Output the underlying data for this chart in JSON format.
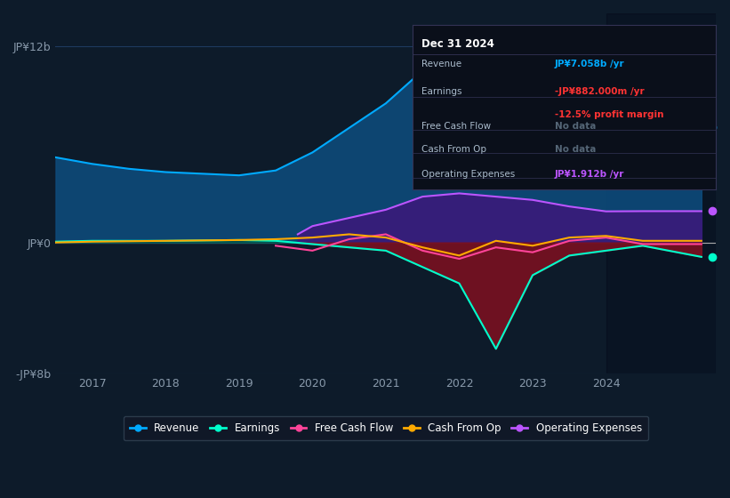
{
  "bg_color": "#0d1b2a",
  "plot_bg_color": "#0d1b2a",
  "ylim": [
    -8000000000,
    14000000000
  ],
  "xlim": [
    2016.5,
    2025.5
  ],
  "yticks": [
    -8000000000,
    0,
    12000000000
  ],
  "ytick_labels": [
    "-JP¥8b",
    "JP¥0",
    "JP¥12b"
  ],
  "xticks": [
    2017,
    2018,
    2019,
    2020,
    2021,
    2022,
    2023,
    2024
  ],
  "grid_color": "#1e3a5f",
  "zero_line_color": "#aaaaaa",
  "revenue_color": "#00aaff",
  "revenue_fill": "#0d4a7a",
  "earnings_color": "#00ffcc",
  "earnings_fill_neg": "#7a1020",
  "earnings_fill_pos": "#005544",
  "fcf_color": "#ff4499",
  "cfo_color": "#ffaa00",
  "opex_color": "#bb55ff",
  "opex_fill": "#3a1a7a",
  "info_box_bg": "#0a0f1a",
  "info_box_border": "#333355",
  "info_title": "Dec 31 2024",
  "legend_entries": [
    "Revenue",
    "Earnings",
    "Free Cash Flow",
    "Cash From Op",
    "Operating Expenses"
  ],
  "revenue_x": [
    2016.5,
    2017,
    2017.5,
    2018,
    2018.5,
    2019,
    2019.5,
    2020,
    2020.5,
    2021,
    2021.5,
    2022,
    2022.25,
    2022.5,
    2023,
    2023.5,
    2024,
    2024.5,
    2025.3
  ],
  "revenue_y": [
    5200000000,
    4800000000,
    4500000000,
    4300000000,
    4200000000,
    4100000000,
    4400000000,
    5500000000,
    7000000000,
    8500000000,
    10500000000,
    11800000000,
    12000000000,
    11500000000,
    10000000000,
    8800000000,
    7500000000,
    7200000000,
    7058000000
  ],
  "earnings_x": [
    2016.5,
    2017,
    2018,
    2019,
    2019.5,
    2020,
    2020.5,
    2021,
    2021.5,
    2022,
    2022.5,
    2023,
    2023.5,
    2024,
    2024.5,
    2025.3
  ],
  "earnings_y": [
    50000000,
    100000000,
    100000000,
    150000000,
    100000000,
    -100000000,
    -300000000,
    -500000000,
    -1500000000,
    -2500000000,
    -6500000000,
    -2000000000,
    -800000000,
    -500000000,
    -200000000,
    -882000000
  ],
  "fcf_x": [
    2019.5,
    2020,
    2020.5,
    2021,
    2021.5,
    2022,
    2022.5,
    2023,
    2023.5,
    2024,
    2024.5,
    2025.3
  ],
  "fcf_y": [
    -200000000,
    -500000000,
    200000000,
    500000000,
    -500000000,
    -1000000000,
    -300000000,
    -600000000,
    100000000,
    300000000,
    -100000000,
    -100000000
  ],
  "cfo_x": [
    2016.5,
    2017,
    2018,
    2019,
    2019.5,
    2020,
    2020.5,
    2021,
    2021.5,
    2022,
    2022.5,
    2023,
    2023.5,
    2024,
    2024.5,
    2025.3
  ],
  "cfo_y": [
    0,
    50000000,
    100000000,
    150000000,
    200000000,
    300000000,
    500000000,
    300000000,
    -300000000,
    -800000000,
    100000000,
    -200000000,
    300000000,
    400000000,
    100000000,
    100000000
  ],
  "opex_x": [
    2019.8,
    2020,
    2020.5,
    2021,
    2021.5,
    2022,
    2022.5,
    2023,
    2023.5,
    2024,
    2024.5,
    2025.3
  ],
  "opex_y": [
    500000000,
    1000000000,
    1500000000,
    2000000000,
    2800000000,
    3000000000,
    2800000000,
    2600000000,
    2200000000,
    1900000000,
    1912000000,
    1912000000
  ],
  "highlight_x_start": 2024.0
}
